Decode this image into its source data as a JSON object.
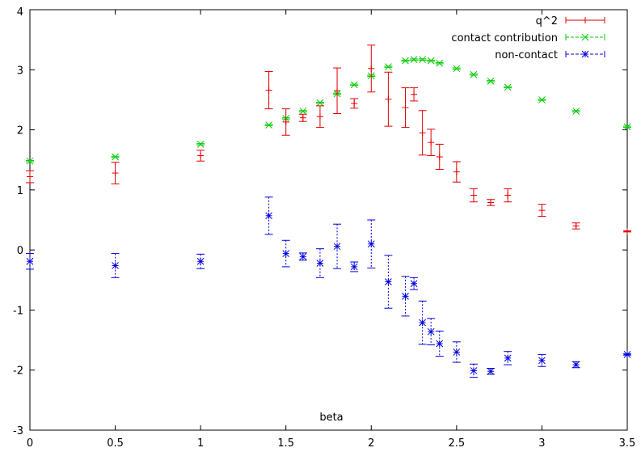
{
  "chart_data": {
    "type": "scatter",
    "xlabel": "beta",
    "ylabel": "",
    "xlim": [
      0,
      3.5
    ],
    "ylim": [
      -3,
      4
    ],
    "xticks": [
      "0",
      "0.5",
      "1",
      "1.5",
      "2",
      "2.5",
      "3",
      "3.5"
    ],
    "yticks": [
      "-3",
      "-2",
      "-1",
      "0",
      "1",
      "2",
      "3",
      "4"
    ],
    "grid": false,
    "legend_position": "top-right",
    "series": [
      {
        "name": "q^2",
        "color": "#e00000",
        "marker": "plus",
        "errorbars": true,
        "dashed": false,
        "points": [
          {
            "x": 0.0,
            "y": 1.22,
            "err": 0.1
          },
          {
            "x": 0.5,
            "y": 1.28,
            "err": 0.18
          },
          {
            "x": 1.0,
            "y": 1.57,
            "err": 0.09
          },
          {
            "x": 1.4,
            "y": 2.66,
            "err": 0.31
          },
          {
            "x": 1.5,
            "y": 2.13,
            "err": 0.22
          },
          {
            "x": 1.6,
            "y": 2.2,
            "err": 0.06
          },
          {
            "x": 1.7,
            "y": 2.22,
            "err": 0.18
          },
          {
            "x": 1.8,
            "y": 2.65,
            "err": 0.38
          },
          {
            "x": 1.9,
            "y": 2.44,
            "err": 0.08
          },
          {
            "x": 2.0,
            "y": 3.02,
            "err": 0.39
          },
          {
            "x": 2.1,
            "y": 2.51,
            "err": 0.45
          },
          {
            "x": 2.2,
            "y": 2.37,
            "err": 0.33
          },
          {
            "x": 2.25,
            "y": 2.59,
            "err": 0.11
          },
          {
            "x": 2.3,
            "y": 1.95,
            "err": 0.37
          },
          {
            "x": 2.35,
            "y": 1.79,
            "err": 0.22
          },
          {
            "x": 2.4,
            "y": 1.55,
            "err": 0.21
          },
          {
            "x": 2.5,
            "y": 1.3,
            "err": 0.17
          },
          {
            "x": 2.6,
            "y": 0.91,
            "err": 0.11
          },
          {
            "x": 2.7,
            "y": 0.79,
            "err": 0.05
          },
          {
            "x": 2.8,
            "y": 0.91,
            "err": 0.11
          },
          {
            "x": 3.0,
            "y": 0.66,
            "err": 0.1
          },
          {
            "x": 3.2,
            "y": 0.4,
            "err": 0.05
          },
          {
            "x": 3.5,
            "y": 0.31,
            "err": 0.01
          }
        ]
      },
      {
        "name": "contact contribution",
        "color": "#00cc00",
        "marker": "cross",
        "errorbars": true,
        "dashed": true,
        "points": [
          {
            "x": 0.0,
            "y": 1.48,
            "err": 0.01
          },
          {
            "x": 0.5,
            "y": 1.55,
            "err": 0.01
          },
          {
            "x": 1.0,
            "y": 1.76,
            "err": 0.01
          },
          {
            "x": 1.4,
            "y": 2.08,
            "err": 0.01
          },
          {
            "x": 1.5,
            "y": 2.19,
            "err": 0.01
          },
          {
            "x": 1.6,
            "y": 2.31,
            "err": 0.01
          },
          {
            "x": 1.7,
            "y": 2.45,
            "err": 0.01
          },
          {
            "x": 1.8,
            "y": 2.6,
            "err": 0.01
          },
          {
            "x": 1.9,
            "y": 2.75,
            "err": 0.01
          },
          {
            "x": 2.0,
            "y": 2.9,
            "err": 0.01
          },
          {
            "x": 2.1,
            "y": 3.05,
            "err": 0.01
          },
          {
            "x": 2.2,
            "y": 3.15,
            "err": 0.01
          },
          {
            "x": 2.25,
            "y": 3.17,
            "err": 0.01
          },
          {
            "x": 2.3,
            "y": 3.17,
            "err": 0.01
          },
          {
            "x": 2.35,
            "y": 3.15,
            "err": 0.01
          },
          {
            "x": 2.4,
            "y": 3.11,
            "err": 0.01
          },
          {
            "x": 2.5,
            "y": 3.02,
            "err": 0.01
          },
          {
            "x": 2.6,
            "y": 2.92,
            "err": 0.01
          },
          {
            "x": 2.7,
            "y": 2.81,
            "err": 0.01
          },
          {
            "x": 2.8,
            "y": 2.71,
            "err": 0.01
          },
          {
            "x": 3.0,
            "y": 2.5,
            "err": 0.01
          },
          {
            "x": 3.2,
            "y": 2.31,
            "err": 0.01
          },
          {
            "x": 3.5,
            "y": 2.05,
            "err": 0.01
          }
        ]
      },
      {
        "name": "non-contact",
        "color": "#0000e0",
        "marker": "star",
        "errorbars": true,
        "dashed": true,
        "points": [
          {
            "x": 0.0,
            "y": -0.19,
            "err": 0.13
          },
          {
            "x": 0.5,
            "y": -0.26,
            "err": 0.2
          },
          {
            "x": 1.0,
            "y": -0.19,
            "err": 0.12
          },
          {
            "x": 1.4,
            "y": 0.57,
            "err": 0.31
          },
          {
            "x": 1.5,
            "y": -0.06,
            "err": 0.22
          },
          {
            "x": 1.6,
            "y": -0.11,
            "err": 0.06
          },
          {
            "x": 1.7,
            "y": -0.22,
            "err": 0.24
          },
          {
            "x": 1.8,
            "y": 0.06,
            "err": 0.37
          },
          {
            "x": 1.9,
            "y": -0.28,
            "err": 0.08
          },
          {
            "x": 2.0,
            "y": 0.1,
            "err": 0.4
          },
          {
            "x": 2.1,
            "y": -0.53,
            "err": 0.44
          },
          {
            "x": 2.2,
            "y": -0.77,
            "err": 0.33
          },
          {
            "x": 2.25,
            "y": -0.56,
            "err": 0.1
          },
          {
            "x": 2.3,
            "y": -1.21,
            "err": 0.36
          },
          {
            "x": 2.35,
            "y": -1.36,
            "err": 0.22
          },
          {
            "x": 2.4,
            "y": -1.56,
            "err": 0.21
          },
          {
            "x": 2.5,
            "y": -1.7,
            "err": 0.17
          },
          {
            "x": 2.6,
            "y": -2.01,
            "err": 0.11
          },
          {
            "x": 2.7,
            "y": -2.02,
            "err": 0.05
          },
          {
            "x": 2.8,
            "y": -1.8,
            "err": 0.11
          },
          {
            "x": 3.0,
            "y": -1.84,
            "err": 0.1
          },
          {
            "x": 3.2,
            "y": -1.91,
            "err": 0.05
          },
          {
            "x": 3.5,
            "y": -1.74,
            "err": 0.01
          }
        ]
      }
    ]
  }
}
